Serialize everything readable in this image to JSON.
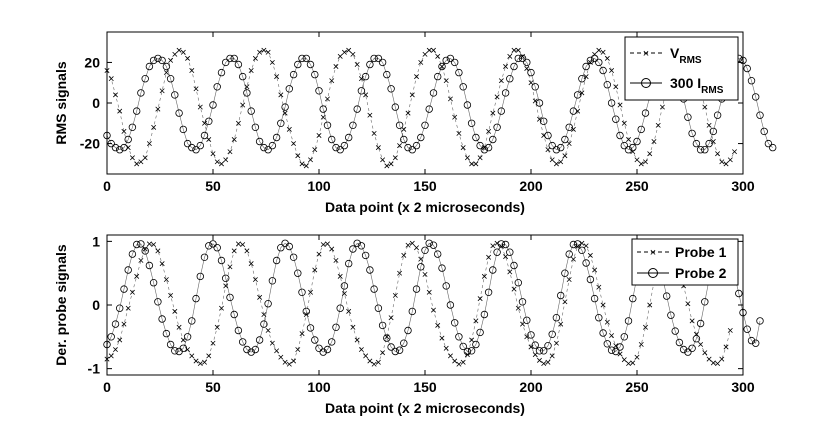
{
  "chart_data": [
    {
      "type": "line",
      "xlabel": "Data point (x 2 microseconds)",
      "ylabel": "RMS signals",
      "xlim": [
        0,
        300
      ],
      "ylim": [
        -35,
        35
      ],
      "xticks": [
        "0",
        "50",
        "100",
        "150",
        "200",
        "250",
        "300"
      ],
      "yticks": [
        "-20",
        "0",
        "20"
      ],
      "grid": false,
      "legend_position": "top-right",
      "color": "#000000",
      "series": [
        {
          "name": "V",
          "name_sub": "RMS",
          "marker": "x",
          "line_style": "dashed",
          "x_start": 0,
          "x_step": 2,
          "values": [
            16,
            12,
            4,
            -4,
            -14,
            -22,
            -27,
            -30,
            -29,
            -27,
            -20,
            -12,
            -3,
            6,
            15,
            21,
            24,
            26,
            25,
            22,
            16,
            7,
            -2,
            -10,
            -18,
            -25,
            -29,
            -30,
            -28,
            -24,
            -18,
            -10,
            -1,
            8,
            16,
            22,
            25,
            26,
            25,
            20,
            13,
            4,
            -5,
            -13,
            -20,
            -26,
            -30,
            -31,
            -28,
            -23,
            -16,
            -7,
            2,
            11,
            18,
            23,
            25,
            26,
            24,
            19,
            12,
            4,
            -6,
            -15,
            -22,
            -28,
            -31,
            -30,
            -27,
            -21,
            -13,
            -5,
            4,
            13,
            20,
            24,
            26,
            26,
            23,
            18,
            11,
            2,
            -7,
            -15,
            -22,
            -27,
            -30,
            -30,
            -27,
            -22,
            -14,
            -5,
            3,
            11,
            18,
            23,
            26,
            26,
            23,
            17,
            10,
            1,
            -8,
            -16,
            -23,
            -28,
            -30,
            -29,
            -26,
            -20,
            -13,
            -4,
            5,
            13,
            20,
            24,
            26,
            25,
            22,
            16,
            8,
            -1,
            -10,
            -18,
            -24,
            -28,
            -30,
            -29,
            -25,
            -19,
            -11,
            -2,
            7,
            15,
            21,
            25,
            26,
            24,
            21,
            15,
            7,
            -2,
            -11,
            -19,
            -25,
            -29,
            -30,
            -28,
            -24
          ]
        },
        {
          "name": "300 I",
          "name_sub": "RMS",
          "marker": "o",
          "line_style": "solid",
          "x_start": 0,
          "x_step": 2,
          "values": [
            -16,
            -20,
            -22,
            -23,
            -22,
            -18,
            -12,
            -4,
            5,
            12,
            18,
            21,
            22,
            21,
            18,
            12,
            4,
            -5,
            -13,
            -20,
            -22,
            -23,
            -21,
            -16,
            -9,
            -1,
            8,
            15,
            20,
            22,
            22,
            19,
            13,
            5,
            -4,
            -12,
            -19,
            -22,
            -23,
            -21,
            -17,
            -10,
            -2,
            7,
            14,
            19,
            22,
            22,
            19,
            14,
            6,
            -3,
            -11,
            -18,
            -22,
            -23,
            -21,
            -17,
            -11,
            -3,
            6,
            13,
            19,
            22,
            22,
            20,
            14,
            7,
            -2,
            -11,
            -18,
            -22,
            -23,
            -21,
            -17,
            -11,
            -3,
            5,
            13,
            18,
            21,
            22,
            20,
            15,
            8,
            -1,
            -10,
            -17,
            -21,
            -23,
            -22,
            -18,
            -12,
            -4,
            5,
            12,
            18,
            22,
            22,
            20,
            15,
            8,
            0,
            -9,
            -16,
            -21,
            -23,
            -22,
            -18,
            -12,
            -4,
            4,
            12,
            18,
            21,
            22,
            20,
            16,
            9,
            0,
            -8,
            -16,
            -21,
            -23,
            -22,
            -19,
            -13,
            -5,
            3,
            11,
            17,
            21,
            22,
            21,
            16,
            10,
            2,
            -7,
            -15,
            -20,
            -23,
            -23,
            -20,
            -14,
            -6,
            2,
            10,
            16,
            21,
            22,
            21,
            17,
            11,
            3,
            -6,
            -14,
            -20,
            -22
          ]
        }
      ]
    },
    {
      "type": "line",
      "xlabel": "Data point (x 2 microseconds)",
      "ylabel": "Der. probe signals",
      "xlim": [
        0,
        300
      ],
      "ylim": [
        -1.1,
        1.1
      ],
      "xticks": [
        "0",
        "50",
        "100",
        "150",
        "200",
        "250",
        "300"
      ],
      "yticks": [
        "-1",
        "0",
        "1"
      ],
      "grid": false,
      "legend_position": "top-right",
      "color": "#000000",
      "series": [
        {
          "name": "Probe 1",
          "marker": "x",
          "line_style": "dashed",
          "x_start": 0,
          "x_step": 2,
          "values": [
            -0.85,
            -0.8,
            -0.7,
            -0.55,
            -0.3,
            -0.05,
            0.2,
            0.45,
            0.7,
            0.88,
            0.96,
            0.95,
            0.85,
            0.65,
            0.4,
            0.15,
            -0.1,
            -0.35,
            -0.55,
            -0.7,
            -0.8,
            -0.88,
            -0.92,
            -0.9,
            -0.8,
            -0.6,
            -0.35,
            -0.05,
            0.3,
            0.6,
            0.85,
            0.96,
            0.95,
            0.85,
            0.65,
            0.4,
            0.12,
            -0.15,
            -0.4,
            -0.6,
            -0.72,
            -0.82,
            -0.9,
            -0.93,
            -0.88,
            -0.7,
            -0.45,
            -0.15,
            0.2,
            0.55,
            0.8,
            0.95,
            0.96,
            0.88,
            0.7,
            0.45,
            0.18,
            -0.1,
            -0.35,
            -0.55,
            -0.7,
            -0.8,
            -0.88,
            -0.93,
            -0.9,
            -0.75,
            -0.5,
            -0.2,
            0.15,
            0.5,
            0.78,
            0.94,
            0.97,
            0.9,
            0.72,
            0.48,
            0.2,
            -0.08,
            -0.32,
            -0.52,
            -0.68,
            -0.8,
            -0.88,
            -0.93,
            -0.9,
            -0.78,
            -0.55,
            -0.25,
            0.1,
            0.45,
            0.75,
            0.93,
            0.97,
            0.92,
            0.76,
            0.52,
            0.25,
            -0.05,
            -0.3,
            -0.5,
            -0.66,
            -0.78,
            -0.87,
            -0.92,
            -0.9,
            -0.8,
            -0.6,
            -0.3,
            0.05,
            0.4,
            0.72,
            0.92,
            0.97,
            0.93,
            0.78,
            0.55,
            0.28,
            0.0,
            -0.27,
            -0.48,
            -0.64,
            -0.77,
            -0.86,
            -0.92,
            -0.91,
            -0.82,
            -0.62,
            -0.35,
            0.0,
            0.36,
            0.68,
            0.9,
            0.97,
            0.94,
            0.8,
            0.58,
            0.3,
            0.02,
            -0.25,
            -0.46,
            -0.62,
            -0.75,
            -0.85,
            -0.91,
            -0.92,
            -0.85,
            -0.66,
            -0.4
          ]
        },
        {
          "name": "Probe 2",
          "marker": "o",
          "line_style": "solid",
          "x_start": 0,
          "x_step": 2,
          "values": [
            -0.62,
            -0.5,
            -0.3,
            -0.05,
            0.25,
            0.55,
            0.8,
            0.95,
            0.96,
            0.85,
            0.62,
            0.35,
            0.05,
            -0.22,
            -0.45,
            -0.62,
            -0.72,
            -0.73,
            -0.68,
            -0.5,
            -0.25,
            0.1,
            0.45,
            0.75,
            0.93,
            0.96,
            0.9,
            0.7,
            0.42,
            0.12,
            -0.15,
            -0.4,
            -0.58,
            -0.7,
            -0.74,
            -0.7,
            -0.55,
            -0.3,
            0.02,
            0.38,
            0.7,
            0.9,
            0.97,
            0.92,
            0.75,
            0.5,
            0.2,
            -0.1,
            -0.36,
            -0.55,
            -0.68,
            -0.74,
            -0.7,
            -0.58,
            -0.35,
            -0.05,
            0.3,
            0.65,
            0.88,
            0.97,
            0.93,
            0.78,
            0.55,
            0.25,
            -0.05,
            -0.32,
            -0.52,
            -0.66,
            -0.73,
            -0.71,
            -0.6,
            -0.4,
            -0.1,
            0.25,
            0.6,
            0.86,
            0.97,
            0.94,
            0.8,
            0.58,
            0.3,
            0.0,
            -0.28,
            -0.5,
            -0.65,
            -0.73,
            -0.72,
            -0.62,
            -0.43,
            -0.15,
            0.2,
            0.55,
            0.83,
            0.96,
            0.95,
            0.83,
            0.62,
            0.35,
            0.05,
            -0.24,
            -0.47,
            -0.63,
            -0.72,
            -0.72,
            -0.64,
            -0.46,
            -0.2,
            0.15,
            0.5,
            0.8,
            0.95,
            0.96,
            0.86,
            0.66,
            0.4,
            0.1,
            -0.2,
            -0.44,
            -0.61,
            -0.71,
            -0.73,
            -0.66,
            -0.5,
            -0.25,
            0.1,
            0.45,
            0.76,
            0.94,
            0.97,
            0.88,
            0.7,
            0.44,
            0.14,
            -0.16,
            -0.41,
            -0.59,
            -0.7,
            -0.74,
            -0.68,
            -0.53,
            -0.29,
            0.05,
            0.4,
            0.72,
            0.92,
            0.97,
            0.9,
            0.72,
            0.48,
            0.18,
            -0.12,
            -0.38,
            -0.56,
            -0.6,
            -0.25
          ]
        }
      ]
    }
  ]
}
